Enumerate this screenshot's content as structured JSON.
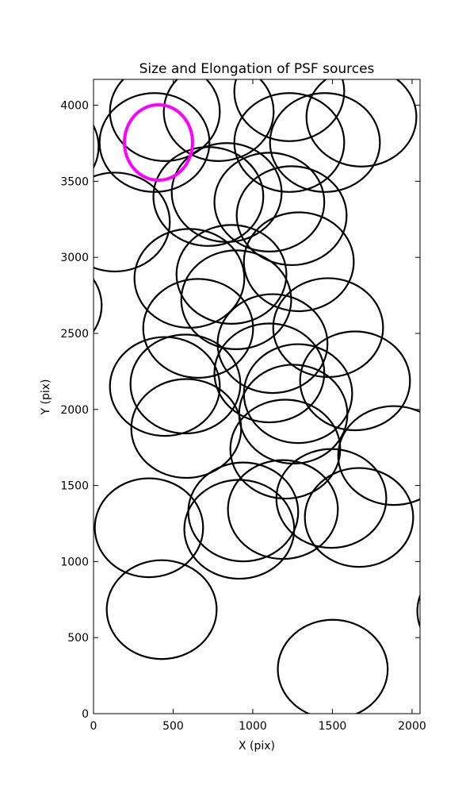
{
  "chart_data": {
    "type": "ellipse",
    "title": "Size and Elongation of PSF sources",
    "x_label": "X (pix)",
    "y_label": "Y (pix)",
    "xlim": [
      0,
      2050
    ],
    "ylim": [
      0,
      4170
    ],
    "xticks": [
      0,
      500,
      1000,
      1500,
      2000
    ],
    "yticks": [
      0,
      500,
      1000,
      1500,
      2000,
      2500,
      3000,
      3500,
      4000
    ],
    "series": [
      {
        "color": "#000000",
        "x": [
          428,
          1502,
          2378,
          2398,
          348,
          915,
          940,
          1189,
          1493,
          1667,
          582,
          1204,
          1254,
          448,
          577,
          1104,
          1284,
          1642,
          1886,
          657,
          1124,
          1473,
          -294,
          602,
          866,
          896,
          1289,
          1104,
          1244,
          721,
          836,
          134,
          -313,
          383,
          448,
          786,
          1229,
          1229,
          1453,
          1682
        ],
        "y": [
          684,
          292,
          674,
          648,
          1222,
          1212,
          1326,
          1342,
          1415,
          1290,
          1875,
          1739,
          1969,
          2151,
          2167,
          2240,
          2104,
          2188,
          1697,
          2533,
          2433,
          2538,
          2684,
          2862,
          2888,
          2721,
          2971,
          3363,
          3274,
          3400,
          3426,
          3232,
          3728,
          3755,
          3958,
          3958,
          4089,
          3755,
          3755,
          3922
        ],
        "width": [
          690,
          690,
          690,
          680,
          680,
          690,
          690,
          690,
          690,
          680,
          690,
          690,
          680,
          690,
          690,
          690,
          680,
          690,
          700,
          690,
          690,
          690,
          690,
          690,
          690,
          690,
          690,
          690,
          690,
          690,
          690,
          690,
          690,
          690,
          690,
          690,
          690,
          690,
          690,
          690
        ],
        "height": [
          650,
          650,
          650,
          650,
          650,
          650,
          650,
          650,
          650,
          650,
          650,
          650,
          650,
          650,
          650,
          650,
          650,
          650,
          650,
          650,
          650,
          650,
          650,
          650,
          650,
          650,
          650,
          650,
          650,
          650,
          650,
          650,
          650,
          650,
          650,
          650,
          650,
          650,
          650,
          650
        ]
      },
      {
        "color": "#ff00ff",
        "x": [
          408
        ],
        "y": [
          3755
        ],
        "width": [
          428
        ],
        "height": [
          496
        ]
      }
    ]
  }
}
